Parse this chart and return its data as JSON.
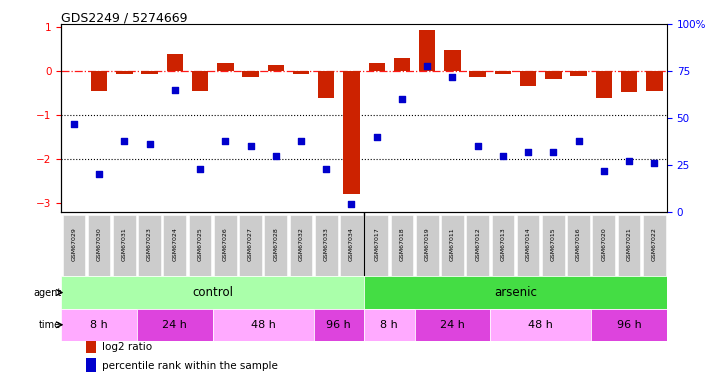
{
  "title": "GDS2249 / 5274669",
  "samples": [
    "GSM67029",
    "GSM67030",
    "GSM67031",
    "GSM67023",
    "GSM67024",
    "GSM67025",
    "GSM67026",
    "GSM67027",
    "GSM67028",
    "GSM67032",
    "GSM67033",
    "GSM67034",
    "GSM67017",
    "GSM67018",
    "GSM67019",
    "GSM67011",
    "GSM67012",
    "GSM67013",
    "GSM67014",
    "GSM67015",
    "GSM67016",
    "GSM67020",
    "GSM67021",
    "GSM67022"
  ],
  "log2_ratio": [
    0.0,
    -0.45,
    -0.07,
    -0.08,
    0.38,
    -0.45,
    0.18,
    -0.15,
    0.14,
    -0.07,
    -0.62,
    -2.8,
    0.18,
    0.28,
    0.92,
    0.48,
    -0.15,
    -0.08,
    -0.35,
    -0.18,
    -0.12,
    -0.62,
    -0.48,
    -0.45
  ],
  "percentile_rank": [
    47,
    20,
    38,
    36,
    65,
    23,
    38,
    35,
    30,
    38,
    23,
    4,
    40,
    60,
    78,
    72,
    35,
    30,
    32,
    32,
    38,
    22,
    27,
    26
  ],
  "agent_groups": [
    {
      "label": "control",
      "start": 0,
      "end": 11,
      "color": "#aaffaa"
    },
    {
      "label": "arsenic",
      "start": 12,
      "end": 23,
      "color": "#44dd44"
    }
  ],
  "time_groups": [
    {
      "label": "8 h",
      "start": 0,
      "end": 2,
      "color": "#ffaaff"
    },
    {
      "label": "24 h",
      "start": 3,
      "end": 5,
      "color": "#dd44dd"
    },
    {
      "label": "48 h",
      "start": 6,
      "end": 9,
      "color": "#ffaaff"
    },
    {
      "label": "96 h",
      "start": 10,
      "end": 11,
      "color": "#dd44dd"
    },
    {
      "label": "8 h",
      "start": 12,
      "end": 13,
      "color": "#ffaaff"
    },
    {
      "label": "24 h",
      "start": 14,
      "end": 16,
      "color": "#dd44dd"
    },
    {
      "label": "48 h",
      "start": 17,
      "end": 20,
      "color": "#ffaaff"
    },
    {
      "label": "96 h",
      "start": 21,
      "end": 23,
      "color": "#dd44dd"
    }
  ],
  "bar_color": "#cc2200",
  "dot_color": "#0000cc",
  "ylim_left": [
    -3.2,
    1.05
  ],
  "ylim_right": [
    0,
    100
  ],
  "yticks_left": [
    1,
    0,
    -1,
    -2,
    -3
  ],
  "yticks_right": [
    0,
    25,
    50,
    75,
    100
  ],
  "legend_items": [
    {
      "label": "log2 ratio",
      "color": "#cc2200"
    },
    {
      "label": "percentile rank within the sample",
      "color": "#0000cc"
    }
  ]
}
